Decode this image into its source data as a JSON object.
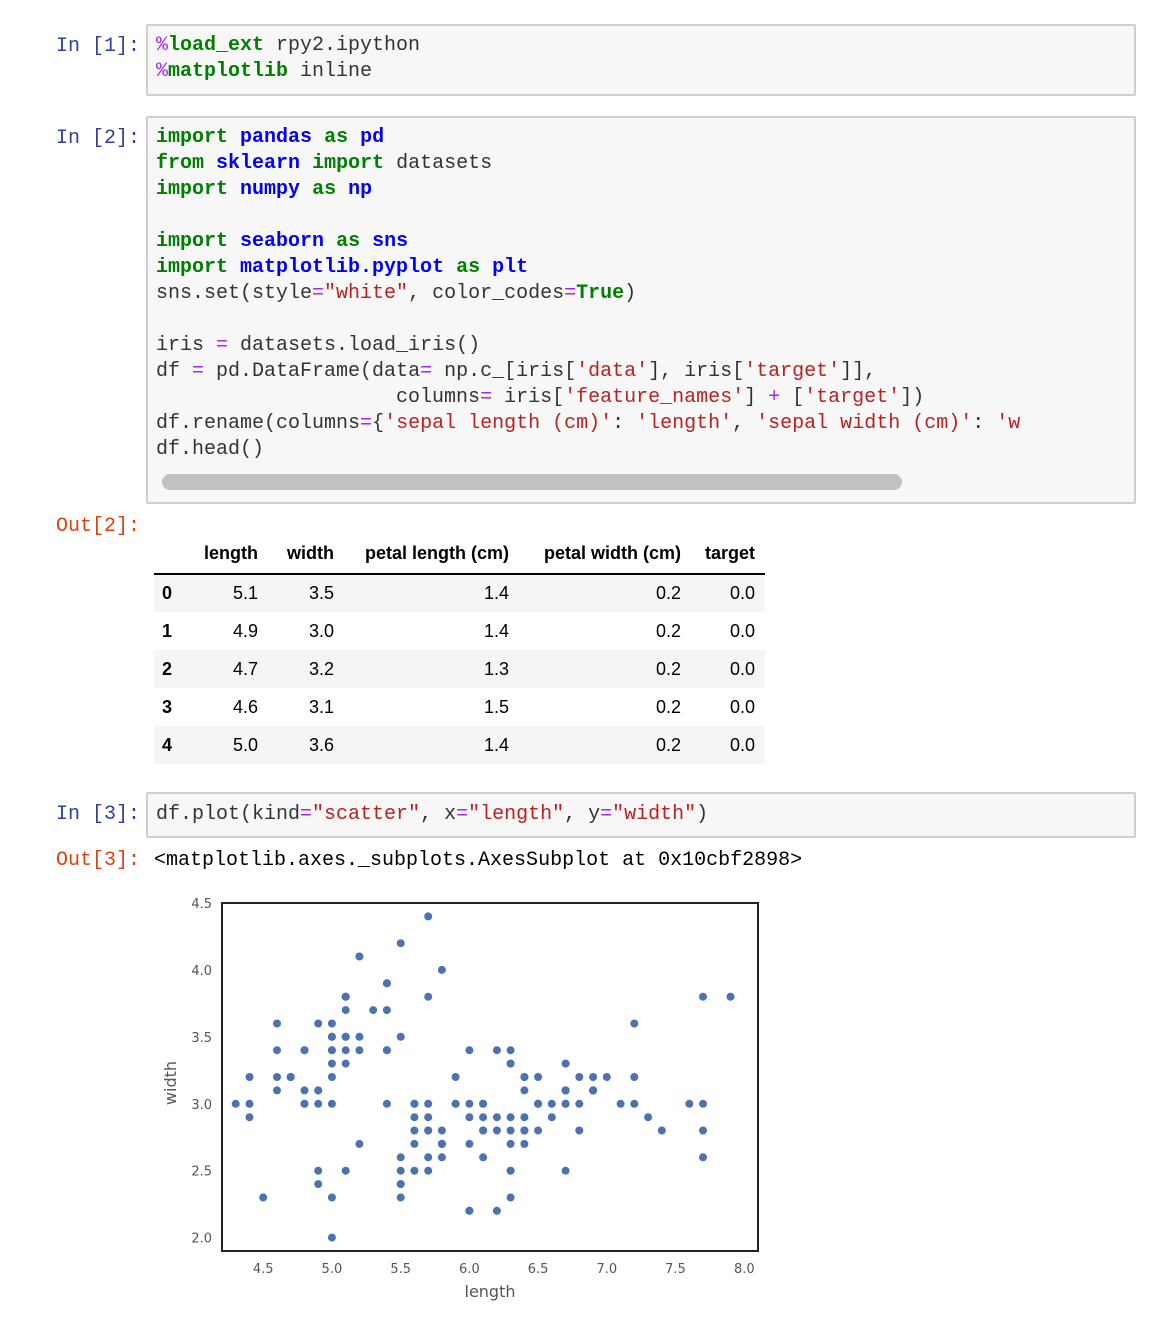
{
  "cells": {
    "c1": {
      "prompt": "In [1]:"
    },
    "c2": {
      "prompt": "In [2]:"
    },
    "o2": {
      "prompt": "Out[2]:"
    },
    "c3": {
      "prompt": "In [3]:"
    },
    "o3": {
      "prompt": "Out[3]:",
      "text": "<matplotlib.axes._subplots.AxesSubplot at 0x10cbf2898>"
    }
  },
  "table": {
    "columns": [
      "length",
      "width",
      "petal length (cm)",
      "petal width (cm)",
      "target"
    ],
    "rows": [
      {
        "index": "0",
        "values": [
          "5.1",
          "3.5",
          "1.4",
          "0.2",
          "0.0"
        ]
      },
      {
        "index": "1",
        "values": [
          "4.9",
          "3.0",
          "1.4",
          "0.2",
          "0.0"
        ]
      },
      {
        "index": "2",
        "values": [
          "4.7",
          "3.2",
          "1.3",
          "0.2",
          "0.0"
        ]
      },
      {
        "index": "3",
        "values": [
          "4.6",
          "3.1",
          "1.5",
          "0.2",
          "0.0"
        ]
      },
      {
        "index": "4",
        "values": [
          "5.0",
          "3.6",
          "1.4",
          "0.2",
          "0.0"
        ]
      }
    ]
  },
  "colors": {
    "point": "#4C72B0",
    "in_prompt": "#303F9F",
    "out_prompt": "#D84315"
  },
  "chart_data": {
    "type": "scatter",
    "xlabel": "length",
    "ylabel": "width",
    "xlim": [
      4.2,
      8.1
    ],
    "ylim": [
      1.9,
      4.5
    ],
    "xticks": [
      "4.5",
      "5.0",
      "5.5",
      "6.0",
      "6.5",
      "7.0",
      "7.5",
      "8.0"
    ],
    "yticks": [
      "2.0",
      "2.5",
      "3.0",
      "3.5",
      "4.0",
      "4.5"
    ],
    "grid": false,
    "points": [
      [
        5.1,
        3.5
      ],
      [
        4.9,
        3.0
      ],
      [
        4.7,
        3.2
      ],
      [
        4.6,
        3.1
      ],
      [
        5.0,
        3.6
      ],
      [
        5.4,
        3.9
      ],
      [
        4.6,
        3.4
      ],
      [
        5.0,
        3.4
      ],
      [
        4.4,
        2.9
      ],
      [
        4.9,
        3.1
      ],
      [
        5.4,
        3.7
      ],
      [
        4.8,
        3.4
      ],
      [
        4.8,
        3.0
      ],
      [
        4.3,
        3.0
      ],
      [
        5.8,
        4.0
      ],
      [
        5.7,
        4.4
      ],
      [
        5.4,
        3.9
      ],
      [
        5.1,
        3.5
      ],
      [
        5.7,
        3.8
      ],
      [
        5.1,
        3.8
      ],
      [
        5.4,
        3.4
      ],
      [
        5.1,
        3.7
      ],
      [
        4.6,
        3.6
      ],
      [
        5.1,
        3.3
      ],
      [
        4.8,
        3.4
      ],
      [
        5.0,
        3.0
      ],
      [
        5.0,
        3.4
      ],
      [
        5.2,
        3.5
      ],
      [
        5.2,
        3.4
      ],
      [
        4.7,
        3.2
      ],
      [
        4.8,
        3.1
      ],
      [
        5.4,
        3.4
      ],
      [
        5.2,
        4.1
      ],
      [
        5.5,
        4.2
      ],
      [
        4.9,
        3.1
      ],
      [
        5.0,
        3.2
      ],
      [
        5.5,
        3.5
      ],
      [
        4.9,
        3.6
      ],
      [
        4.4,
        3.0
      ],
      [
        5.1,
        3.4
      ],
      [
        5.0,
        3.5
      ],
      [
        4.5,
        2.3
      ],
      [
        4.4,
        3.2
      ],
      [
        5.0,
        3.5
      ],
      [
        5.1,
        3.8
      ],
      [
        4.8,
        3.0
      ],
      [
        5.1,
        3.8
      ],
      [
        4.6,
        3.2
      ],
      [
        5.3,
        3.7
      ],
      [
        5.0,
        3.3
      ],
      [
        7.0,
        3.2
      ],
      [
        6.4,
        3.2
      ],
      [
        6.9,
        3.1
      ],
      [
        5.5,
        2.3
      ],
      [
        6.5,
        2.8
      ],
      [
        5.7,
        2.8
      ],
      [
        6.3,
        3.3
      ],
      [
        4.9,
        2.4
      ],
      [
        6.6,
        2.9
      ],
      [
        5.2,
        2.7
      ],
      [
        5.0,
        2.0
      ],
      [
        5.9,
        3.0
      ],
      [
        6.0,
        2.2
      ],
      [
        6.1,
        2.9
      ],
      [
        5.6,
        2.9
      ],
      [
        6.7,
        3.1
      ],
      [
        5.6,
        3.0
      ],
      [
        5.8,
        2.7
      ],
      [
        6.2,
        2.2
      ],
      [
        5.6,
        2.5
      ],
      [
        5.9,
        3.2
      ],
      [
        6.1,
        2.8
      ],
      [
        6.3,
        2.5
      ],
      [
        6.1,
        2.8
      ],
      [
        6.4,
        2.9
      ],
      [
        6.6,
        3.0
      ],
      [
        6.8,
        2.8
      ],
      [
        6.7,
        3.0
      ],
      [
        6.0,
        2.9
      ],
      [
        5.7,
        2.6
      ],
      [
        5.5,
        2.4
      ],
      [
        5.5,
        2.4
      ],
      [
        5.8,
        2.7
      ],
      [
        6.0,
        2.7
      ],
      [
        5.4,
        3.0
      ],
      [
        6.0,
        3.4
      ],
      [
        6.7,
        3.1
      ],
      [
        6.3,
        2.3
      ],
      [
        5.6,
        3.0
      ],
      [
        5.5,
        2.5
      ],
      [
        5.5,
        2.6
      ],
      [
        6.1,
        3.0
      ],
      [
        5.8,
        2.6
      ],
      [
        5.0,
        2.3
      ],
      [
        5.6,
        2.7
      ],
      [
        5.7,
        3.0
      ],
      [
        5.7,
        2.9
      ],
      [
        6.2,
        2.9
      ],
      [
        5.1,
        2.5
      ],
      [
        5.7,
        2.8
      ],
      [
        6.3,
        3.3
      ],
      [
        5.8,
        2.7
      ],
      [
        7.1,
        3.0
      ],
      [
        6.3,
        2.9
      ],
      [
        6.5,
        3.0
      ],
      [
        7.6,
        3.0
      ],
      [
        4.9,
        2.5
      ],
      [
        7.3,
        2.9
      ],
      [
        6.7,
        2.5
      ],
      [
        7.2,
        3.6
      ],
      [
        6.5,
        3.2
      ],
      [
        6.4,
        2.7
      ],
      [
        6.8,
        3.0
      ],
      [
        5.7,
        2.5
      ],
      [
        5.8,
        2.8
      ],
      [
        6.4,
        3.2
      ],
      [
        6.5,
        3.0
      ],
      [
        7.7,
        3.8
      ],
      [
        7.7,
        2.6
      ],
      [
        6.0,
        2.2
      ],
      [
        6.9,
        3.2
      ],
      [
        5.6,
        2.8
      ],
      [
        7.7,
        2.8
      ],
      [
        6.3,
        2.7
      ],
      [
        6.7,
        3.3
      ],
      [
        7.2,
        3.2
      ],
      [
        6.2,
        2.8
      ],
      [
        6.1,
        3.0
      ],
      [
        6.4,
        2.8
      ],
      [
        7.2,
        3.0
      ],
      [
        7.4,
        2.8
      ],
      [
        7.9,
        3.8
      ],
      [
        6.4,
        2.8
      ],
      [
        6.3,
        2.8
      ],
      [
        6.1,
        2.6
      ],
      [
        7.7,
        3.0
      ],
      [
        6.3,
        3.4
      ],
      [
        6.4,
        3.1
      ],
      [
        6.0,
        3.0
      ],
      [
        6.9,
        3.1
      ],
      [
        6.7,
        3.1
      ],
      [
        6.9,
        3.1
      ],
      [
        5.8,
        2.7
      ],
      [
        6.8,
        3.2
      ],
      [
        6.7,
        3.3
      ],
      [
        6.7,
        3.0
      ],
      [
        6.3,
        2.5
      ],
      [
        6.5,
        3.0
      ],
      [
        6.2,
        3.4
      ],
      [
        5.9,
        3.0
      ]
    ]
  }
}
